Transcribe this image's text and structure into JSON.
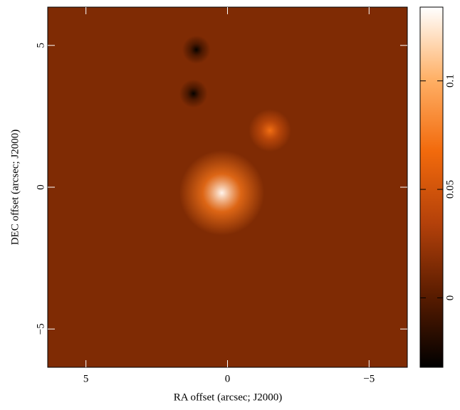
{
  "chart_data": {
    "type": "heatmap",
    "xlabel": "RA offset (arcsec; J2000)",
    "ylabel": "DEC offset (arcsec; J2000)",
    "xlim": [
      6.35,
      -6.35
    ],
    "ylim": [
      -6.35,
      6.35
    ],
    "xticks": [
      5,
      0,
      {
        "value": -5,
        "label": "−5"
      }
    ],
    "yticks": [
      {
        "value": -5,
        "label": "−5"
      },
      0,
      5
    ],
    "clim": [
      -0.032,
      0.134
    ],
    "cticks": [
      0,
      0.05,
      0.1
    ],
    "colormap": [
      "#000000",
      "#5a1c00",
      "#b4410a",
      "#f26a0c",
      "#ffb066",
      "#ffffff"
    ],
    "background_level": 0.015,
    "sources": [
      {
        "x": 0.2,
        "y": -0.2,
        "value": 0.13,
        "radius": 1.5
      },
      {
        "x": -1.5,
        "y": 2.0,
        "value": 0.07,
        "radius": 0.75
      },
      {
        "x": 1.1,
        "y": 4.85,
        "value": -0.03,
        "radius": 0.5
      },
      {
        "x": 1.2,
        "y": 3.3,
        "value": -0.03,
        "radius": 0.5
      }
    ]
  }
}
